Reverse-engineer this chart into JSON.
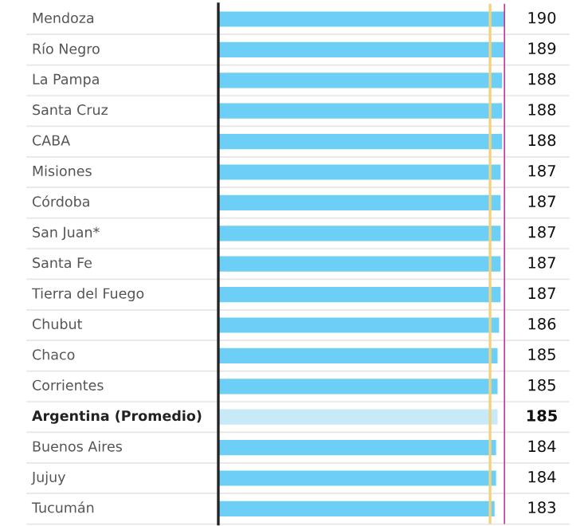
{
  "chart_data": {
    "type": "bar",
    "orientation": "horizontal",
    "categories": [
      "Mendoza",
      "Río Negro",
      "La Pampa",
      "Santa Cruz",
      "CABA",
      "Misiones",
      "Córdoba",
      "San Juan*",
      "Santa Fe",
      "Tierra del Fuego",
      "Chubut",
      "Chaco",
      "Corrientes",
      "Argentina (Promedio)",
      "Buenos Aires",
      "Jujuy",
      "Tucumán"
    ],
    "values": [
      190,
      189,
      188,
      188,
      188,
      187,
      187,
      187,
      187,
      187,
      186,
      185,
      185,
      185,
      184,
      184,
      183
    ],
    "colors": [
      "#6dcff6",
      "#6dcff6",
      "#6dcff6",
      "#6dcff6",
      "#6dcff6",
      "#6dcff6",
      "#6dcff6",
      "#6dcff6",
      "#6dcff6",
      "#6dcff6",
      "#6dcff6",
      "#6dcff6",
      "#6dcff6",
      "#c8eaf8",
      "#6dcff6",
      "#6dcff6",
      "#6dcff6"
    ],
    "xlim": [
      0,
      190
    ],
    "data_labels": true,
    "legend": false,
    "ref_lines": [
      {
        "axis": "x",
        "value": 180,
        "color": "#f2d27a"
      },
      {
        "axis": "x",
        "value": 190,
        "color": "#c23a9e"
      }
    ]
  }
}
